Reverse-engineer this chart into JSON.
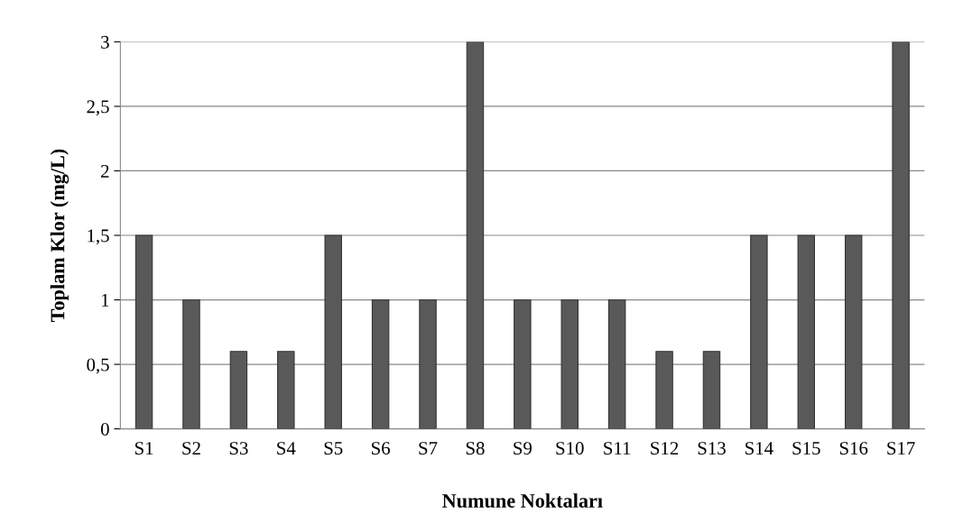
{
  "chart_data": {
    "type": "bar",
    "xlabel": "Numune Noktaları",
    "ylabel": "Toplam Klor (mg/L)",
    "categories": [
      "S1",
      "S2",
      "S3",
      "S4",
      "S5",
      "S6",
      "S7",
      "S8",
      "S9",
      "S10",
      "S11",
      "S12",
      "S13",
      "S14",
      "S15",
      "S16",
      "S17"
    ],
    "values": [
      1.5,
      1,
      0.6,
      0.6,
      1.5,
      1,
      1,
      3,
      1,
      1,
      1,
      0.6,
      0.6,
      1.5,
      1.5,
      1.5,
      3
    ],
    "color": "#595959",
    "ylim": [
      0,
      3
    ],
    "yticks": [
      0,
      {
        "value": 0.5,
        "label": "0,5"
      },
      1,
      {
        "value": 1.5,
        "label": "1,5"
      },
      2,
      {
        "value": 2.5,
        "label": "2,5"
      },
      3
    ],
    "grid": "y"
  }
}
